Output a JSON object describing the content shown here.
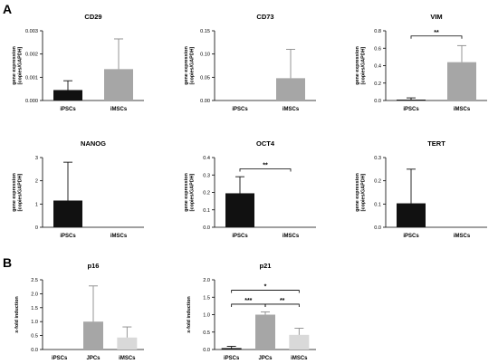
{
  "panels": [
    {
      "letter": "A"
    },
    {
      "letter": "B"
    }
  ],
  "chart_data": [
    {
      "type": "bar",
      "panel": "A",
      "title": "CD29",
      "ylabel_lines": [
        "gene expression",
        "[copies/GAPDH]"
      ],
      "categories": [
        "iPSCs",
        "iMSCs"
      ],
      "values": [
        0.00045,
        0.00135
      ],
      "errors": [
        0.0004,
        0.0013
      ],
      "colors": [
        "#111111",
        "#a6a6a6"
      ],
      "ylim": [
        0,
        0.003
      ],
      "yticks": [
        "0.000",
        "0.001",
        "0.002",
        "0.003"
      ],
      "significance": []
    },
    {
      "type": "bar",
      "panel": "A",
      "title": "CD73",
      "ylabel_lines": [
        "gene expression",
        "[copies/GAPDH]"
      ],
      "categories": [
        "iPSCs",
        "iMSCs"
      ],
      "values": [
        0,
        0.048
      ],
      "errors": [
        0,
        0.062
      ],
      "colors": [
        "#111111",
        "#a6a6a6"
      ],
      "ylim": [
        0,
        0.15
      ],
      "yticks": [
        "0.00",
        "0.05",
        "0.10",
        "0.15"
      ],
      "significance": []
    },
    {
      "type": "bar",
      "panel": "A",
      "title": "VIM",
      "ylabel_lines": [
        "gene expression",
        "[copies/GAPDH]"
      ],
      "categories": [
        "iPSCs",
        "iMSCs"
      ],
      "values": [
        0.01,
        0.44
      ],
      "errors": [
        0.02,
        0.19
      ],
      "colors": [
        "#111111",
        "#a6a6a6"
      ],
      "ylim": [
        0,
        0.8
      ],
      "yticks": [
        "0.0",
        "0.2",
        "0.4",
        "0.6",
        "0.8"
      ],
      "significance": [
        {
          "from": 0,
          "to": 1,
          "label": "**",
          "y": 0.74
        }
      ]
    },
    {
      "type": "bar",
      "panel": "A",
      "title": "NANOG",
      "ylabel_lines": [
        "gene expression",
        "[copies/GAPDH]"
      ],
      "categories": [
        "iPSCs",
        "iMSCs"
      ],
      "values": [
        1.15,
        0
      ],
      "errors": [
        1.65,
        0
      ],
      "colors": [
        "#111111",
        "#a6a6a6"
      ],
      "ylim": [
        0,
        3
      ],
      "yticks": [
        "0",
        "1",
        "2",
        "3"
      ],
      "significance": []
    },
    {
      "type": "bar",
      "panel": "A",
      "title": "OCT4",
      "ylabel_lines": [
        "gene expression",
        "[copies/GAPDH]"
      ],
      "categories": [
        "iPSCs",
        "iMSCs"
      ],
      "values": [
        0.195,
        0
      ],
      "errors": [
        0.095,
        0
      ],
      "colors": [
        "#111111",
        "#a6a6a6"
      ],
      "ylim": [
        0,
        0.4
      ],
      "yticks": [
        "0.0",
        "0.1",
        "0.2",
        "0.3",
        "0.4"
      ],
      "significance": [
        {
          "from": 0,
          "to": 1,
          "label": "**",
          "y": 0.335
        }
      ]
    },
    {
      "type": "bar",
      "panel": "A",
      "title": "TERT",
      "ylabel_lines": [
        "gene expression",
        "[copies/GAPDH]"
      ],
      "categories": [
        "iPSCs",
        "iMSCs"
      ],
      "values": [
        0.103,
        0
      ],
      "errors": [
        0.147,
        0
      ],
      "colors": [
        "#111111",
        "#a6a6a6"
      ],
      "ylim": [
        0,
        0.3
      ],
      "yticks": [
        "0.0",
        "0.1",
        "0.2",
        "0.3"
      ],
      "significance": []
    },
    {
      "type": "bar",
      "panel": "B",
      "title": "p16",
      "ylabel_lines": [
        "x-fold induction"
      ],
      "categories": [
        "iPSCs",
        "JPCs",
        "iMSCs"
      ],
      "values": [
        0,
        1.0,
        0.43
      ],
      "errors": [
        0,
        1.28,
        0.38
      ],
      "colors": [
        "#111111",
        "#a6a6a6",
        "#d9d9d9"
      ],
      "ylim": [
        0,
        2.5
      ],
      "yticks": [
        "0.0",
        "0.5",
        "1.0",
        "1.5",
        "2.0",
        "2.5"
      ],
      "significance": []
    },
    {
      "type": "bar",
      "panel": "B",
      "title": "p21",
      "ylabel_lines": [
        "x-fold induction"
      ],
      "categories": [
        "iPSCs",
        "JPCs",
        "iMSCs"
      ],
      "values": [
        0.04,
        1.0,
        0.42
      ],
      "errors": [
        0.05,
        0.08,
        0.19
      ],
      "colors": [
        "#111111",
        "#a6a6a6",
        "#d9d9d9"
      ],
      "ylim": [
        0,
        2.0
      ],
      "yticks": [
        "0.0",
        "0.5",
        "1.0",
        "1.5",
        "2.0"
      ],
      "significance": [
        {
          "from": 0,
          "to": 2,
          "label": "*",
          "y": 1.7
        },
        {
          "from": 0,
          "to": 1,
          "label": "***",
          "y": 1.3
        },
        {
          "from": 1,
          "to": 2,
          "label": "**",
          "y": 1.3
        }
      ]
    }
  ]
}
